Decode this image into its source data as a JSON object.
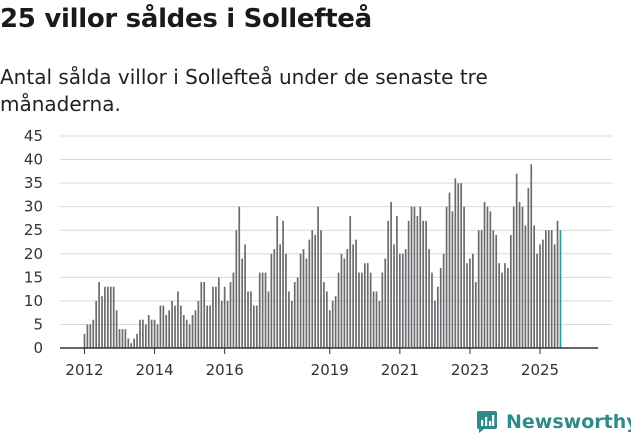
{
  "title": "25 villor såldes i Sollefteå",
  "subtitle": "Antal sålda villor i Sollefteå under de senaste tre månaderna.",
  "brand": {
    "name": "Newsworthy",
    "color": "#2e8c88"
  },
  "colors": {
    "bar": "#6b6a6e",
    "highlight": "#2a9a96",
    "grid": "#d9d9d9",
    "axis": "#333333",
    "text": "#333333"
  },
  "chart_data": {
    "type": "bar",
    "title": "25 villor såldes i Sollefteå",
    "xlabel": "",
    "ylabel": "",
    "ylim": [
      0,
      45
    ],
    "yticks": [
      0,
      5,
      10,
      15,
      20,
      25,
      30,
      35,
      40,
      45
    ],
    "start": "2012-01",
    "xticks": [
      {
        "label": "2012",
        "index": 0
      },
      {
        "label": "2014",
        "index": 24
      },
      {
        "label": "2016",
        "index": 48
      },
      {
        "label": "2019",
        "index": 84
      },
      {
        "label": "2021",
        "index": 108
      },
      {
        "label": "2023",
        "index": 132
      },
      {
        "label": "2025",
        "index": 156
      }
    ],
    "annotation": {
      "label": "25",
      "index": 166
    },
    "values": [
      3,
      5,
      5,
      6,
      10,
      14,
      11,
      13,
      13,
      13,
      13,
      8,
      4,
      4,
      4,
      2,
      1,
      2,
      3,
      6,
      6,
      5,
      7,
      6,
      6,
      5,
      9,
      9,
      7,
      8,
      10,
      9,
      12,
      9,
      7,
      6,
      5,
      7,
      8,
      10,
      14,
      14,
      9,
      9,
      13,
      13,
      15,
      10,
      13,
      10,
      14,
      16,
      25,
      30,
      19,
      22,
      12,
      12,
      9,
      9,
      16,
      16,
      16,
      12,
      20,
      21,
      28,
      22,
      27,
      20,
      12,
      10,
      14,
      15,
      20,
      21,
      19,
      23,
      25,
      24,
      30,
      25,
      14,
      12,
      8,
      10,
      11,
      16,
      20,
      19,
      21,
      28,
      22,
      23,
      16,
      16,
      18,
      18,
      16,
      12,
      12,
      10,
      16,
      19,
      27,
      31,
      22,
      28,
      20,
      20,
      21,
      27,
      30,
      30,
      28,
      30,
      27,
      27,
      21,
      16,
      10,
      13,
      17,
      20,
      30,
      33,
      29,
      36,
      35,
      35,
      30,
      18,
      19,
      20,
      14,
      25,
      25,
      31,
      30,
      29,
      25,
      24,
      18,
      16,
      18,
      17,
      24,
      30,
      37,
      31,
      30,
      26,
      34,
      39,
      26,
      20,
      22,
      23,
      25,
      25,
      25,
      22,
      27,
      25
    ]
  }
}
